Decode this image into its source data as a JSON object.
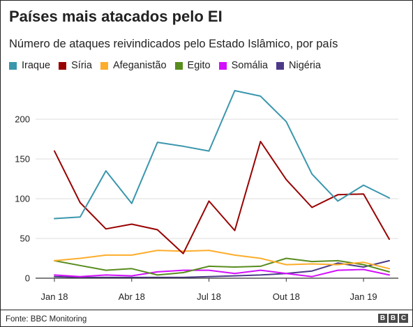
{
  "chart_data": {
    "type": "line",
    "title": "Países mais atacados pelo EI",
    "subtitle": "Número de ataques reivindicados pelo Estado Islâmico, por país",
    "xlabel": "",
    "ylabel": "",
    "x": [
      "Jan 18",
      "Fev 18",
      "Mar 18",
      "Abr 18",
      "Mai 18",
      "Jun 18",
      "Jul 18",
      "Ago 18",
      "Set 18",
      "Out 18",
      "Nov 18",
      "Dez 18",
      "Jan 19",
      "Fev 19"
    ],
    "x_ticks": [
      {
        "index": 0,
        "label": "Jan 18"
      },
      {
        "index": 3,
        "label": "Abr 18"
      },
      {
        "index": 6,
        "label": "Jul 18"
      },
      {
        "index": 9,
        "label": "Out 18"
      },
      {
        "index": 12,
        "label": "Jan 19"
      }
    ],
    "y_ticks": [
      0,
      50,
      100,
      150,
      200
    ],
    "ylim": [
      0,
      240
    ],
    "grid": "horizontal",
    "legend_position": "top-left",
    "series": [
      {
        "name": "Iraque",
        "color": "#3a96ad",
        "values": [
          75,
          77,
          135,
          94,
          171,
          166,
          160,
          236,
          229,
          197,
          131,
          97,
          117,
          101
        ]
      },
      {
        "name": "Síria",
        "color": "#990000",
        "values": [
          160,
          95,
          62,
          68,
          61,
          31,
          97,
          60,
          172,
          124,
          89,
          105,
          106,
          49
        ]
      },
      {
        "name": "Afeganistão",
        "color": "#fdad2b",
        "values": [
          22,
          25,
          29,
          29,
          35,
          34,
          35,
          29,
          25,
          17,
          18,
          17,
          20,
          12
        ]
      },
      {
        "name": "Egito",
        "color": "#588c1e",
        "values": [
          22,
          16,
          10,
          12,
          4,
          7,
          15,
          14,
          15,
          25,
          21,
          22,
          17,
          8
        ]
      },
      {
        "name": "Somália",
        "color": "#d40fff",
        "values": [
          4,
          2,
          4,
          3,
          8,
          10,
          10,
          6,
          10,
          6,
          2,
          10,
          11,
          4
        ]
      },
      {
        "name": "Nigéria",
        "color": "#4c3a87",
        "values": [
          2,
          1,
          1,
          1,
          1,
          1,
          2,
          3,
          4,
          6,
          9,
          19,
          14,
          22
        ]
      }
    ]
  },
  "footer": {
    "source": "Fonte: BBC Monitoring",
    "logo_letters": [
      "B",
      "B",
      "C"
    ]
  }
}
